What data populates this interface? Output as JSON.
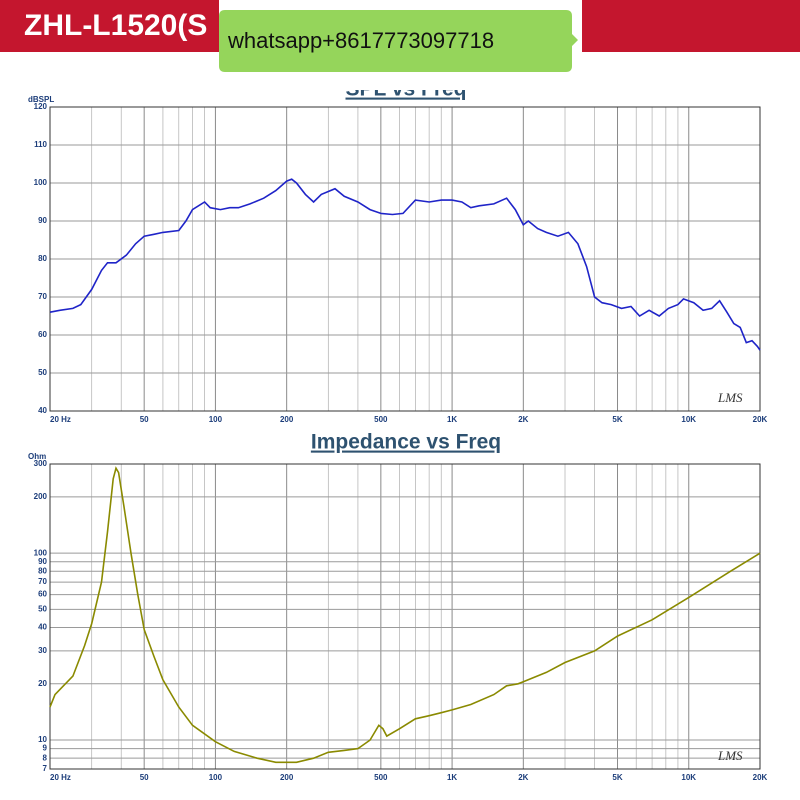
{
  "header": {
    "title": "ZHL-L1520(S",
    "watermark": "whatsapp+8617773097718"
  },
  "chart_data": [
    {
      "type": "line",
      "title": "SPL vs Freq",
      "ylabel": "dBSPL",
      "logo": "LMS",
      "color": "#1f24c8",
      "xscale": "log",
      "yscale": "linear",
      "grid": true,
      "xlim": [
        20,
        20000
      ],
      "ylim": [
        40,
        120
      ],
      "xticks": [
        {
          "value": 20,
          "label": "20 Hz"
        },
        50,
        100,
        200,
        500,
        {
          "value": 1000,
          "label": "1K"
        },
        {
          "value": 2000,
          "label": "2K"
        },
        {
          "value": 5000,
          "label": "5K"
        },
        {
          "value": 10000,
          "label": "10K"
        },
        {
          "value": 20000,
          "label": "20K"
        }
      ],
      "x_minor_ticks": [
        30,
        40,
        60,
        70,
        80,
        90,
        300,
        400,
        600,
        700,
        800,
        900,
        3000,
        4000,
        6000,
        7000,
        8000,
        9000
      ],
      "yticks": [
        40,
        50,
        60,
        70,
        80,
        90,
        100,
        110,
        120
      ],
      "x": [
        20,
        22,
        25,
        27,
        30,
        33,
        35,
        38,
        42,
        46,
        50,
        55,
        60,
        70,
        75,
        80,
        90,
        95,
        105,
        115,
        125,
        140,
        160,
        180,
        200,
        210,
        220,
        240,
        260,
        280,
        320,
        350,
        400,
        450,
        500,
        560,
        620,
        700,
        800,
        900,
        1000,
        1100,
        1200,
        1300,
        1500,
        1700,
        1850,
        2000,
        2100,
        2300,
        2500,
        2800,
        3100,
        3400,
        3700,
        4000,
        4300,
        4700,
        5200,
        5700,
        6200,
        6800,
        7500,
        8200,
        9000,
        9500,
        10500,
        11500,
        12500,
        13500,
        14500,
        15500,
        16500,
        17500,
        18500,
        19500,
        20000
      ],
      "values": [
        66,
        66.5,
        67,
        68,
        72,
        77,
        79,
        79,
        81,
        84,
        86,
        86.5,
        87,
        87.5,
        90,
        93,
        95,
        93.5,
        93,
        93.5,
        93.5,
        94.5,
        96,
        98,
        100.5,
        101,
        100,
        97,
        95,
        97,
        98.5,
        96.5,
        95,
        93,
        92,
        91.7,
        92,
        95.5,
        95,
        95.5,
        95.5,
        95,
        93.5,
        94,
        94.5,
        96,
        93,
        89,
        90,
        88,
        87,
        86,
        87,
        84,
        78,
        70,
        68.5,
        68,
        67,
        67.5,
        65,
        66.5,
        65,
        67,
        68,
        69.5,
        68.5,
        66.5,
        67,
        69,
        66,
        63,
        62,
        58,
        58.5,
        57,
        56
      ]
    },
    {
      "type": "line",
      "title": "Impedance vs Freq",
      "ylabel": "Ohm",
      "logo": "LMS",
      "color": "#8a8a00",
      "xscale": "log",
      "yscale": "log",
      "grid": true,
      "xlim": [
        20,
        20000
      ],
      "ylim": [
        7,
        300
      ],
      "xticks": [
        {
          "value": 20,
          "label": "20 Hz"
        },
        50,
        100,
        200,
        500,
        {
          "value": 1000,
          "label": "1K"
        },
        {
          "value": 2000,
          "label": "2K"
        },
        {
          "value": 5000,
          "label": "5K"
        },
        {
          "value": 10000,
          "label": "10K"
        },
        {
          "value": 20000,
          "label": "20K"
        }
      ],
      "x_minor_ticks": [
        30,
        40,
        60,
        70,
        80,
        90,
        300,
        400,
        600,
        700,
        800,
        900,
        3000,
        4000,
        6000,
        7000,
        8000,
        9000
      ],
      "yticks": [
        7,
        8,
        9,
        10,
        20,
        30,
        40,
        50,
        60,
        70,
        80,
        90,
        100,
        200,
        300
      ],
      "x": [
        20,
        21,
        25,
        28,
        30,
        33,
        35,
        37,
        38,
        39,
        41,
        44,
        47,
        50,
        55,
        60,
        70,
        80,
        100,
        120,
        150,
        180,
        220,
        260,
        300,
        350,
        400,
        450,
        490,
        510,
        530,
        600,
        700,
        800,
        900,
        1000,
        1200,
        1500,
        1700,
        1900,
        2000,
        2500,
        3000,
        4000,
        5000,
        7000,
        10000,
        15000,
        20000
      ],
      "values": [
        15,
        17.5,
        22,
        32,
        42,
        70,
        130,
        250,
        285,
        270,
        180,
        100,
        60,
        39,
        28,
        21,
        15,
        12,
        9.8,
        8.7,
        8,
        7.6,
        7.6,
        8,
        8.6,
        8.8,
        9,
        10,
        12,
        11.5,
        10.5,
        11.5,
        13,
        13.5,
        14,
        14.5,
        15.5,
        17.5,
        19.5,
        20,
        20.5,
        23,
        26,
        30,
        36,
        44,
        58,
        80,
        100
      ]
    }
  ]
}
